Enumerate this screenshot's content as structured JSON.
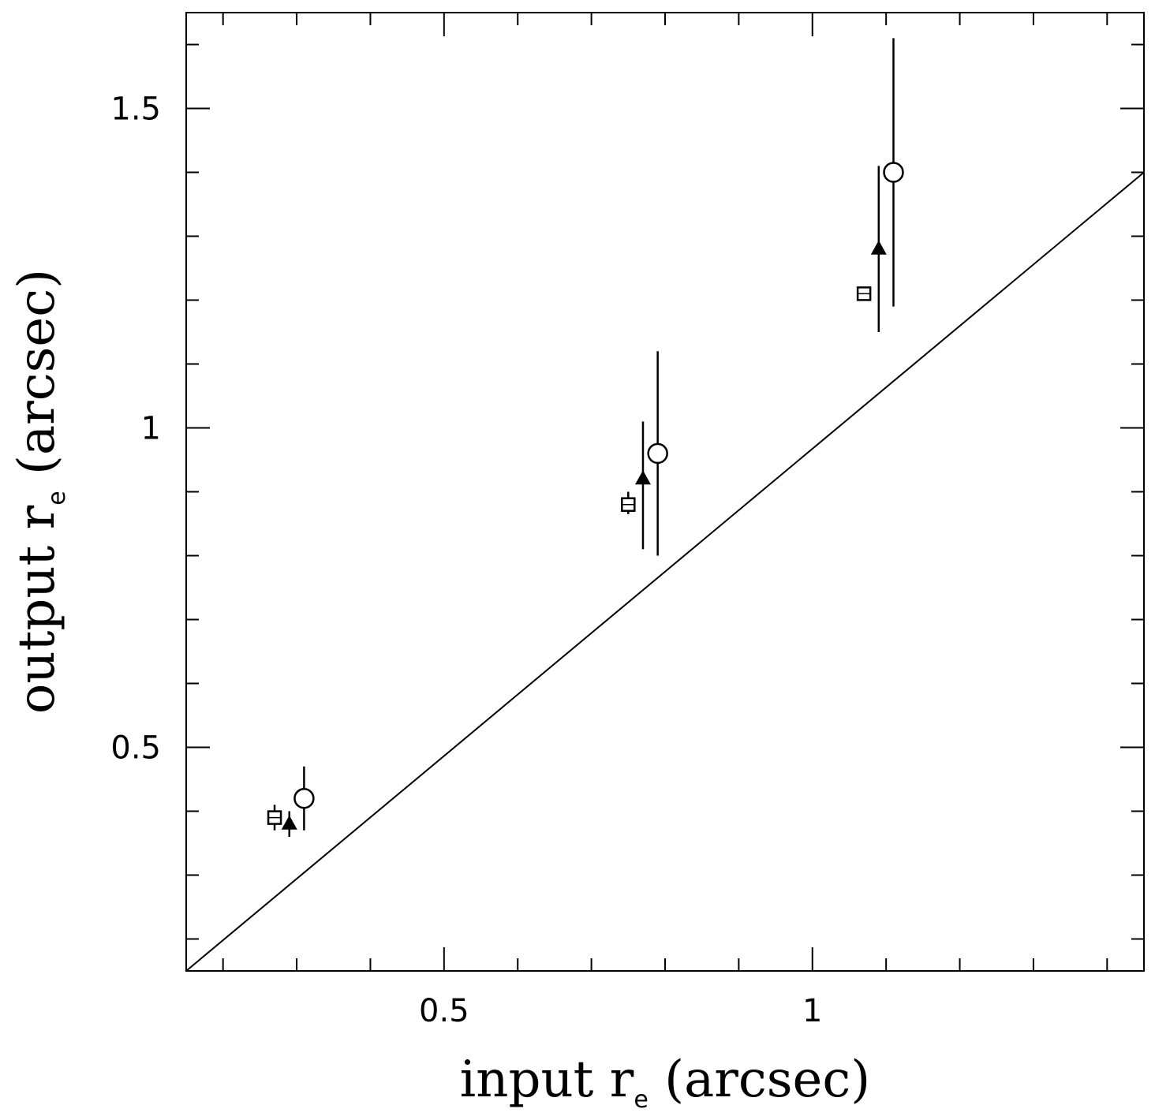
{
  "chart_data": {
    "type": "scatter",
    "xlabel": {
      "main": "input r",
      "sub": "e",
      "unit": " (arcsec)"
    },
    "ylabel": {
      "main": "output r",
      "sub": "e",
      "unit": " (arcsec)"
    },
    "xlim": [
      0.15,
      1.45
    ],
    "ylim": [
      0.15,
      1.65
    ],
    "x_major_ticks": [
      0.5,
      1
    ],
    "x_major_tick_labels": [
      "0.5",
      "1"
    ],
    "y_major_ticks": [
      0.5,
      1,
      1.5
    ],
    "y_major_tick_labels": [
      "0.5",
      "1",
      "1.5"
    ],
    "x_minor_step": 0.1,
    "y_minor_step": 0.1,
    "grid": false,
    "reference_line": {
      "from": [
        0.15,
        0.15
      ],
      "to": [
        1.45,
        1.4
      ]
    },
    "series": [
      {
        "marker": "open-square",
        "points": [
          {
            "x": 0.27,
            "y": 0.39,
            "err_low": 0.37,
            "err_high": 0.41
          },
          {
            "x": 0.75,
            "y": 0.88,
            "err_low": 0.865,
            "err_high": 0.9
          },
          {
            "x": 1.07,
            "y": 1.21,
            "err_low": 1.2,
            "err_high": 1.22
          }
        ]
      },
      {
        "marker": "filled-triangle",
        "points": [
          {
            "x": 0.29,
            "y": 0.38,
            "err_low": 0.36,
            "err_high": 0.4
          },
          {
            "x": 0.77,
            "y": 0.92,
            "err_low": 0.81,
            "err_high": 1.01
          },
          {
            "x": 1.09,
            "y": 1.28,
            "err_low": 1.15,
            "err_high": 1.41
          }
        ]
      },
      {
        "marker": "open-circle",
        "points": [
          {
            "x": 0.31,
            "y": 0.42,
            "err_low": 0.37,
            "err_high": 0.47
          },
          {
            "x": 0.79,
            "y": 0.96,
            "err_low": 0.8,
            "err_high": 1.12
          },
          {
            "x": 1.11,
            "y": 1.4,
            "err_low": 1.19,
            "err_high": 1.61
          }
        ]
      }
    ]
  }
}
